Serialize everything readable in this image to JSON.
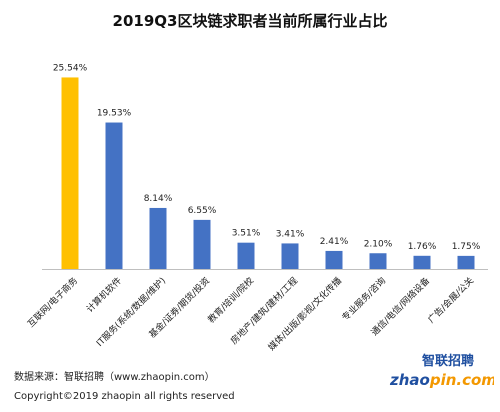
{
  "chart_data": {
    "type": "bar",
    "title": "2019Q3区块链求职者当前所属行业占比",
    "categories": [
      "互联网/电子商务",
      "计算机软件",
      "IT服务(系统/数据/维护)",
      "基金/证券/期货/投资",
      "教育/培训/院校",
      "房地产/建筑/建材/工程",
      "媒体/出版/影视/文化传播",
      "专业服务/咨询",
      "通信/电信/网络设备",
      "广告/会展/公关"
    ],
    "values": [
      25.54,
      19.53,
      8.14,
      6.55,
      3.51,
      3.41,
      2.41,
      2.1,
      1.76,
      1.75
    ],
    "value_labels": [
      "25.54%",
      "19.53%",
      "8.14%",
      "6.55%",
      "3.51%",
      "3.41%",
      "2.41%",
      "2.10%",
      "1.76%",
      "1.75%"
    ],
    "ylim": [
      0,
      30
    ],
    "grid": false,
    "colors": {
      "highlight": "#FFC000",
      "default": "#4472C4"
    }
  },
  "footer": {
    "source": "数据来源：智联招聘（www.zhaopin.com）",
    "copyright": "Copyright©2019 zhaopin all rights reserved"
  },
  "logo": {
    "chinese": "智联招聘",
    "wordmark": "zhaopin.com",
    "colors": {
      "blue": "#1f4fa0",
      "orange": "#f39800"
    }
  }
}
